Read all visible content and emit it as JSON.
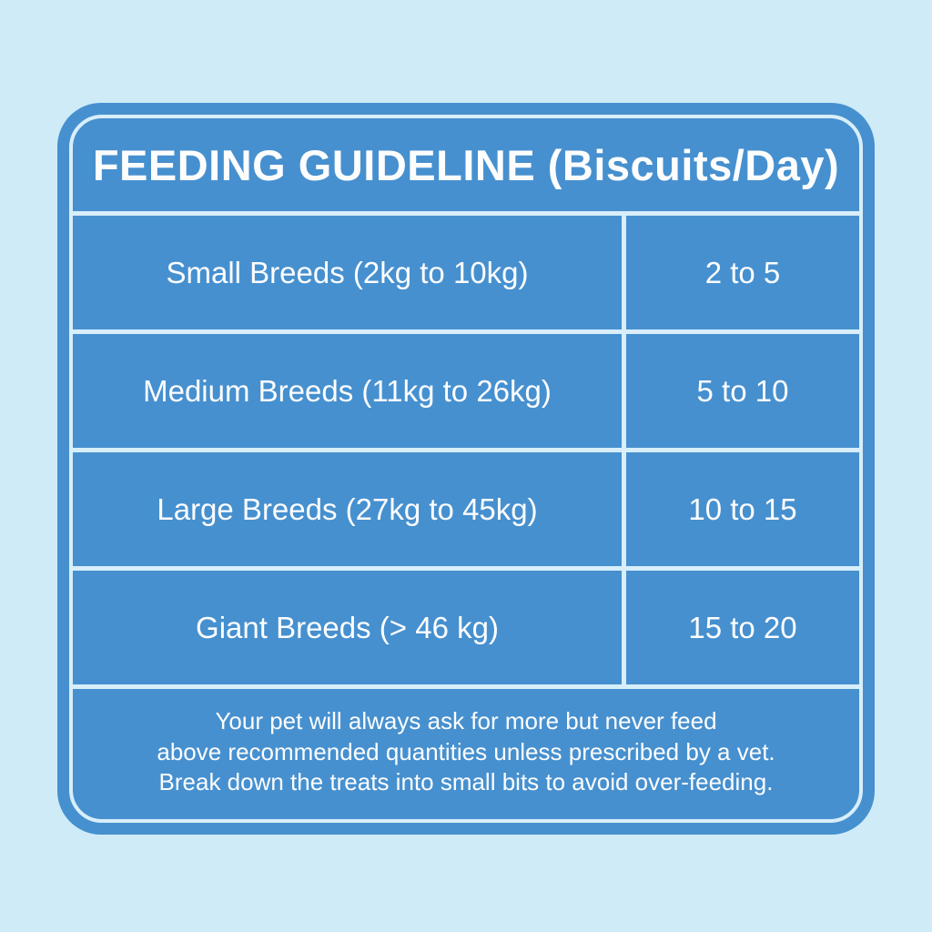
{
  "colors": {
    "page_background": "#cfebf8",
    "card_background": "#4690cf",
    "divider_line": "#d8eefa",
    "text": "#fdfdfe"
  },
  "card": {
    "title": "FEEDING GUIDELINE (Biscuits/Day)"
  },
  "table": {
    "rows": [
      {
        "breed": "Small Breeds (2kg to 10kg)",
        "amount": "2 to 5"
      },
      {
        "breed": "Medium Breeds (11kg to 26kg)",
        "amount": "5 to 10"
      },
      {
        "breed": "Large Breeds (27kg to 45kg)",
        "amount": "10 to 15"
      },
      {
        "breed": "Giant Breeds (> 46 kg)",
        "amount": "15 to 20"
      }
    ]
  },
  "footer": {
    "lines": [
      "Your pet will always ask for more but never feed",
      "above recommended quantities unless prescribed by a vet.",
      "Break down the treats into small bits to avoid over-feeding."
    ]
  }
}
